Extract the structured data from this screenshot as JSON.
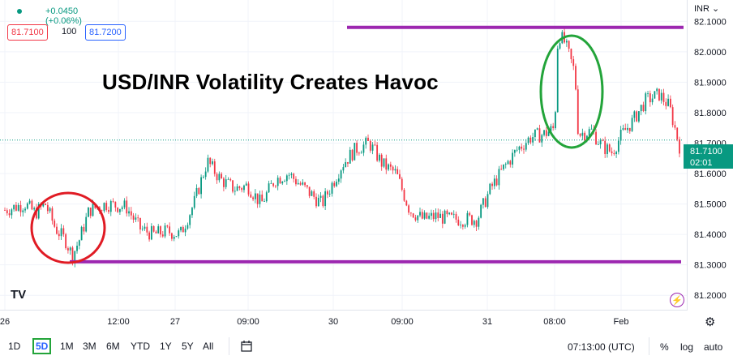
{
  "header": {
    "change": "+0.0450 (+0.06%)",
    "sell_price": "81.7100",
    "spread": "100",
    "buy_price": "81.7200",
    "currency": "INR",
    "currency_caret": "⌄"
  },
  "annotation_title": "USD/INR Volatility Creates Havoc",
  "last_price_tag": {
    "price": "81.7100",
    "countdown": "02:01"
  },
  "colors": {
    "up": "#089981",
    "down": "#f23645",
    "line": "#9c27b0",
    "circle_red": "#e01b24",
    "circle_green": "#23a43a"
  },
  "chart_data": {
    "type": "candlestick",
    "title": "USD/INR Volatility Creates Havoc",
    "y_ticks": [
      "82.1000",
      "82.0000",
      "81.9000",
      "81.8000",
      "81.7000",
      "81.6000",
      "81.5000",
      "81.4000",
      "81.3000",
      "81.2000"
    ],
    "ylim": [
      81.15,
      82.17
    ],
    "x_ticks": [
      "26",
      "12:00",
      "27",
      "09:00",
      "30",
      "09:00",
      "31",
      "08:00",
      "Feb"
    ],
    "last_price": 81.71,
    "horizontal_lines": [
      82.08,
      81.31
    ],
    "circled_regions": [
      "low near 81.31 on 26",
      "spike near 82.07 on 31"
    ],
    "path": [
      {
        "t": 0.0,
        "v": 81.48
      },
      {
        "t": 0.03,
        "v": 81.5
      },
      {
        "t": 0.045,
        "v": 81.47
      },
      {
        "t": 0.06,
        "v": 81.5
      },
      {
        "t": 0.075,
        "v": 81.42
      },
      {
        "t": 0.09,
        "v": 81.38
      },
      {
        "t": 0.1,
        "v": 81.33
      },
      {
        "t": 0.11,
        "v": 81.38
      },
      {
        "t": 0.125,
        "v": 81.48
      },
      {
        "t": 0.15,
        "v": 81.5
      },
      {
        "t": 0.18,
        "v": 81.49
      },
      {
        "t": 0.2,
        "v": 81.42
      },
      {
        "t": 0.22,
        "v": 81.4
      },
      {
        "t": 0.24,
        "v": 81.41
      },
      {
        "t": 0.26,
        "v": 81.4
      },
      {
        "t": 0.28,
        "v": 81.5
      },
      {
        "t": 0.3,
        "v": 81.64
      },
      {
        "t": 0.32,
        "v": 81.58
      },
      {
        "t": 0.34,
        "v": 81.55
      },
      {
        "t": 0.36,
        "v": 81.56
      },
      {
        "t": 0.38,
        "v": 81.5
      },
      {
        "t": 0.4,
        "v": 81.58
      },
      {
        "t": 0.42,
        "v": 81.6
      },
      {
        "t": 0.44,
        "v": 81.56
      },
      {
        "t": 0.47,
        "v": 81.5
      },
      {
        "t": 0.5,
        "v": 81.63
      },
      {
        "t": 0.52,
        "v": 81.68
      },
      {
        "t": 0.54,
        "v": 81.7
      },
      {
        "t": 0.56,
        "v": 81.63
      },
      {
        "t": 0.58,
        "v": 81.6
      },
      {
        "t": 0.6,
        "v": 81.48
      },
      {
        "t": 0.62,
        "v": 81.45
      },
      {
        "t": 0.64,
        "v": 81.46
      },
      {
        "t": 0.66,
        "v": 81.45
      },
      {
        "t": 0.68,
        "v": 81.45
      },
      {
        "t": 0.7,
        "v": 81.45
      },
      {
        "t": 0.72,
        "v": 81.55
      },
      {
        "t": 0.74,
        "v": 81.62
      },
      {
        "t": 0.76,
        "v": 81.68
      },
      {
        "t": 0.78,
        "v": 81.72
      },
      {
        "t": 0.8,
        "v": 81.73
      },
      {
        "t": 0.815,
        "v": 81.75
      },
      {
        "t": 0.82,
        "v": 82.06
      },
      {
        "t": 0.83,
        "v": 82.03
      },
      {
        "t": 0.845,
        "v": 81.93
      },
      {
        "t": 0.85,
        "v": 81.73
      },
      {
        "t": 0.87,
        "v": 81.74
      },
      {
        "t": 0.885,
        "v": 81.69
      },
      {
        "t": 0.9,
        "v": 81.67
      },
      {
        "t": 0.915,
        "v": 81.73
      },
      {
        "t": 0.93,
        "v": 81.77
      },
      {
        "t": 0.95,
        "v": 81.84
      },
      {
        "t": 0.97,
        "v": 81.86
      },
      {
        "t": 0.985,
        "v": 81.82
      },
      {
        "t": 1.0,
        "v": 81.69
      }
    ]
  },
  "bottom_bar": {
    "timeframes": [
      "1D",
      "5D",
      "1M",
      "3M",
      "6M",
      "YTD",
      "1Y",
      "5Y",
      "All"
    ],
    "active_timeframe": "5D",
    "compare_icon": "calendar-range-icon",
    "time": "07:13:00 (UTC)",
    "percent": "%",
    "log": "log",
    "auto": "auto"
  },
  "logo": "TV",
  "bolt_icon": "⚡"
}
